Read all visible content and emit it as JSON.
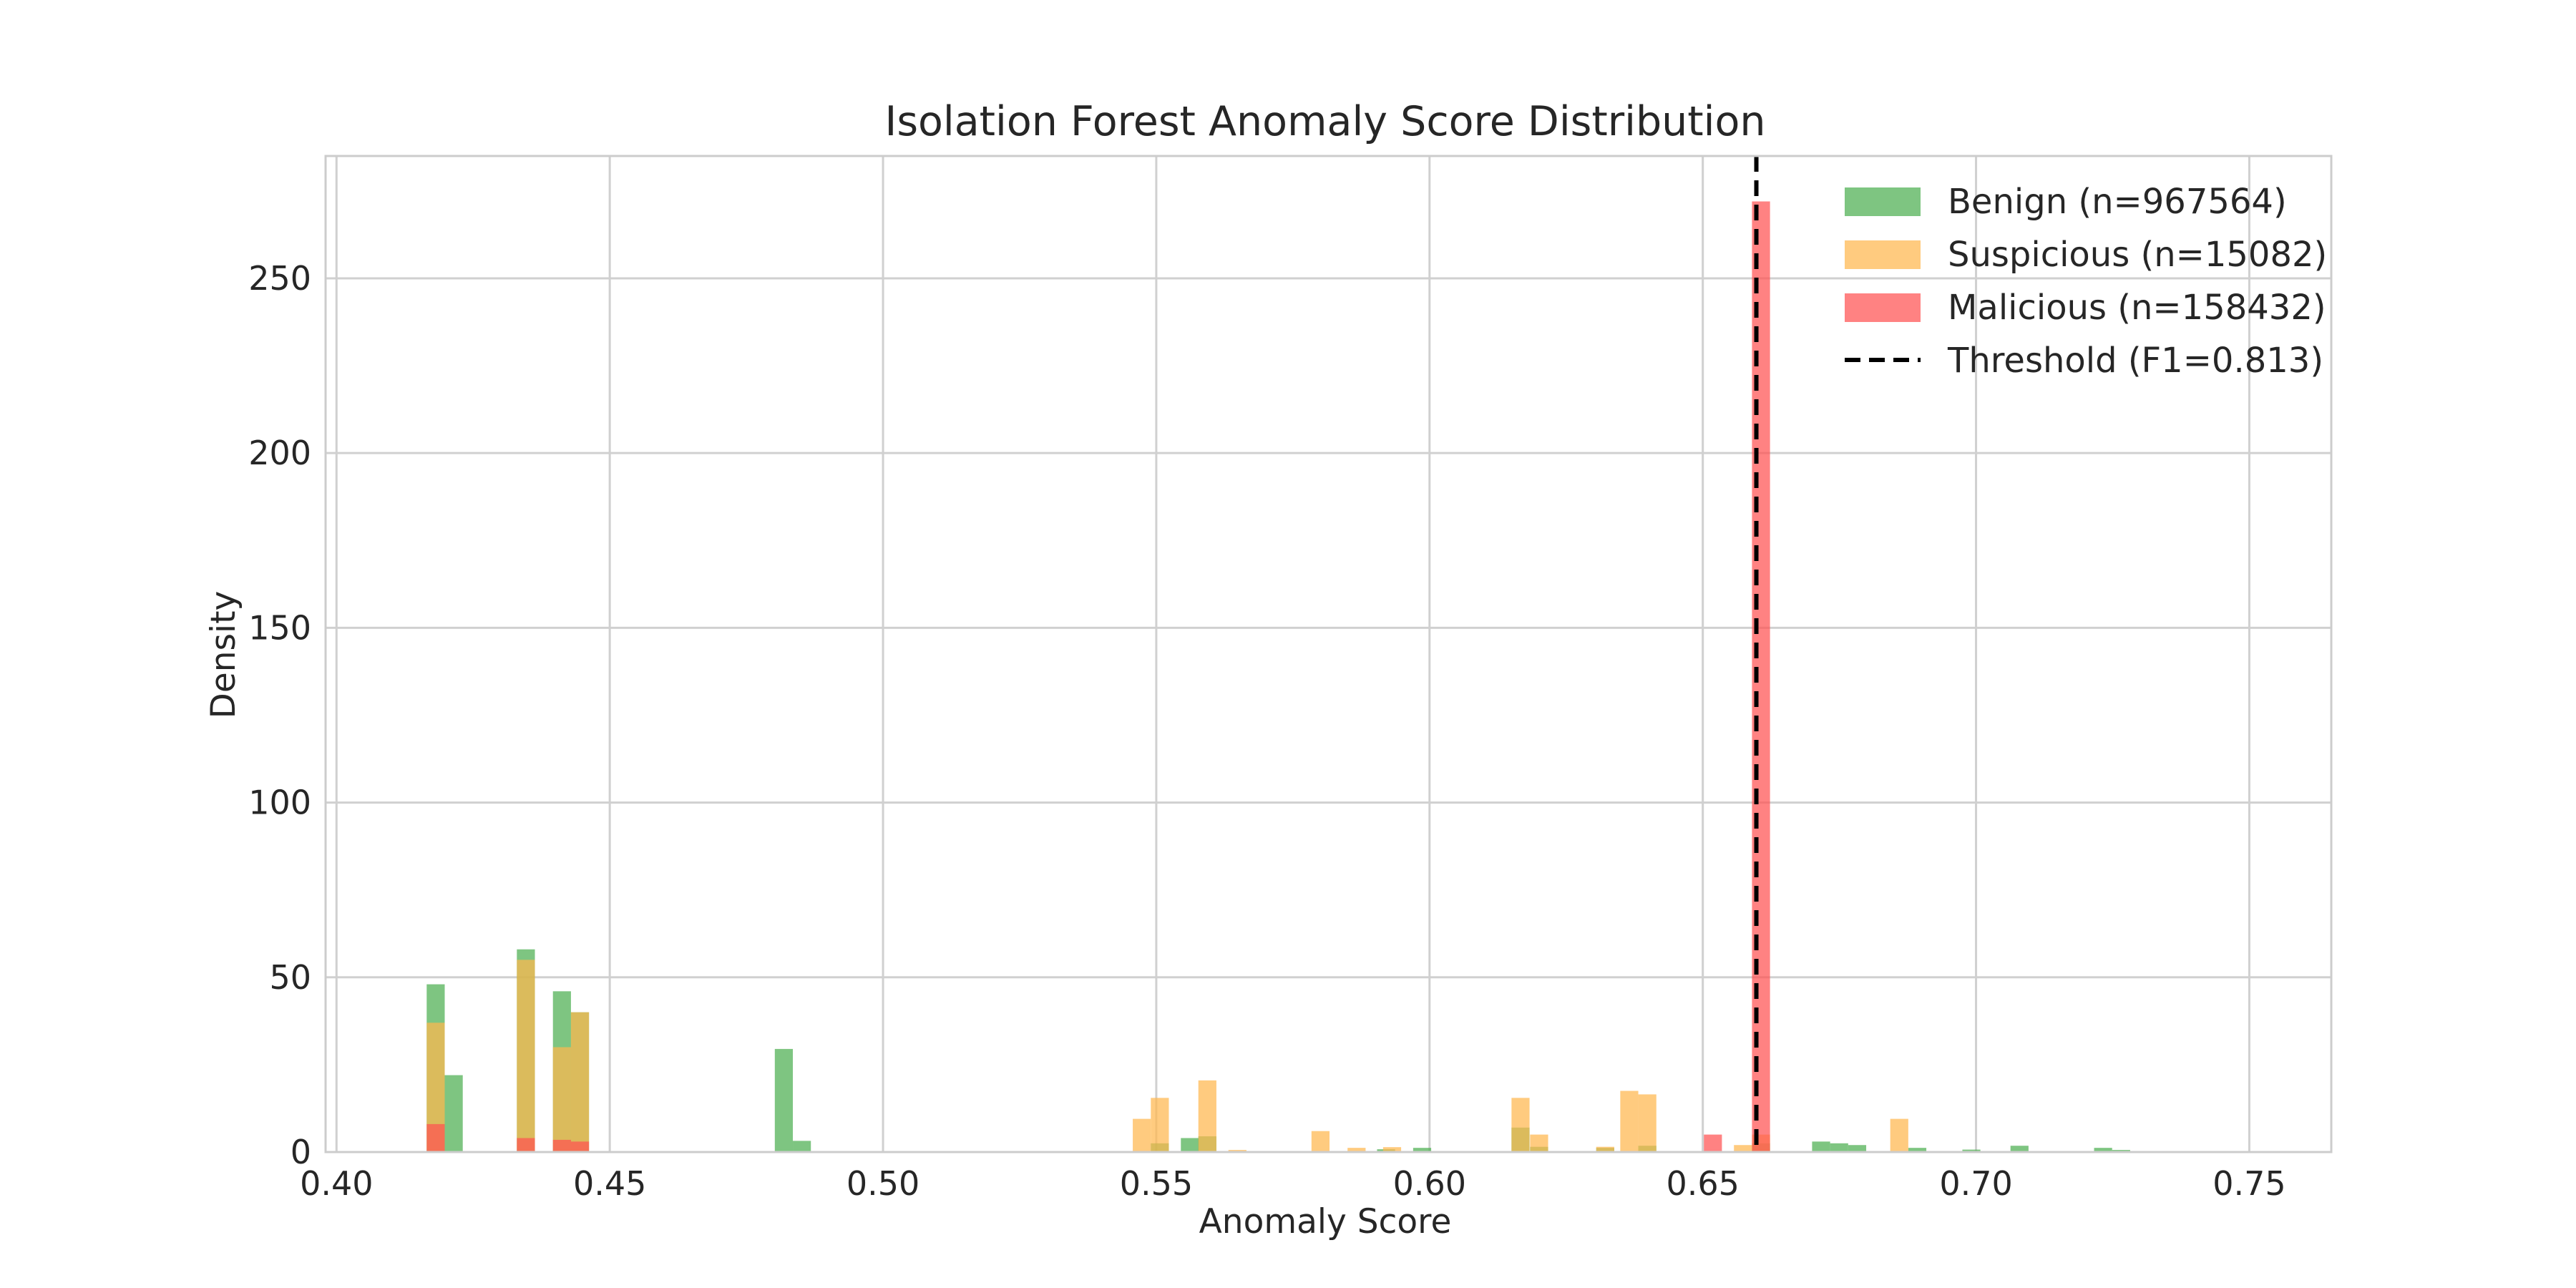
{
  "chart_data": {
    "type": "bar",
    "title": "Isolation Forest Anomaly Score Distribution",
    "xlabel": "Anomaly Score",
    "ylabel": "Density",
    "xlim": [
      0.398,
      0.765
    ],
    "ylim": [
      0,
      285
    ],
    "x_ticks": [
      "0.40",
      "0.45",
      "0.50",
      "0.55",
      "0.60",
      "0.65",
      "0.70",
      "0.75"
    ],
    "x_tick_values": [
      0.4,
      0.45,
      0.5,
      0.55,
      0.6,
      0.65,
      0.7,
      0.75
    ],
    "y_ticks": [
      "0",
      "50",
      "100",
      "150",
      "200",
      "250"
    ],
    "y_tick_values": [
      0,
      50,
      100,
      150,
      200,
      250
    ],
    "grid": true,
    "legend_position": "top-right",
    "bin_width": 0.0033,
    "series": [
      {
        "name": "Benign (n=967564)",
        "color": "#4caf50",
        "bins": [
          [
            0.4165,
            48
          ],
          [
            0.4198,
            22
          ],
          [
            0.433,
            58
          ],
          [
            0.4396,
            46
          ],
          [
            0.4429,
            40
          ],
          [
            0.4802,
            29.5
          ],
          [
            0.4835,
            3.2
          ],
          [
            0.549,
            2.5
          ],
          [
            0.5545,
            4
          ],
          [
            0.5577,
            4.5
          ],
          [
            0.5904,
            0.8
          ],
          [
            0.597,
            1.2
          ],
          [
            0.615,
            7
          ],
          [
            0.6184,
            1.5
          ],
          [
            0.6305,
            1.2
          ],
          [
            0.6382,
            1.8
          ],
          [
            0.659,
            2.5
          ],
          [
            0.67,
            3
          ],
          [
            0.6733,
            2.5
          ],
          [
            0.6766,
            2
          ],
          [
            0.6876,
            1.2
          ],
          [
            0.6975,
            0.7
          ],
          [
            0.7063,
            1.8
          ],
          [
            0.7216,
            1.2
          ],
          [
            0.7249,
            0.6
          ]
        ]
      },
      {
        "name": "Suspicious (n=15082)",
        "color": "#ffb74d",
        "bins": [
          [
            0.4165,
            37
          ],
          [
            0.433,
            55
          ],
          [
            0.4396,
            30
          ],
          [
            0.4429,
            40
          ],
          [
            0.5457,
            9.5
          ],
          [
            0.549,
            15.5
          ],
          [
            0.5577,
            20.5
          ],
          [
            0.5632,
            0.6
          ],
          [
            0.5784,
            6
          ],
          [
            0.585,
            1.2
          ],
          [
            0.5915,
            1.4
          ],
          [
            0.615,
            15.5
          ],
          [
            0.6184,
            5
          ],
          [
            0.6305,
            1.5
          ],
          [
            0.6349,
            17.5
          ],
          [
            0.6382,
            16.5
          ],
          [
            0.6557,
            2
          ],
          [
            0.659,
            5
          ],
          [
            0.6843,
            9.5
          ]
        ]
      },
      {
        "name": "Malicious (n=158432)",
        "color": "#ff5252",
        "bins": [
          [
            0.4165,
            8
          ],
          [
            0.433,
            4
          ],
          [
            0.4396,
            3.5
          ],
          [
            0.4429,
            3
          ],
          [
            0.6502,
            5
          ],
          [
            0.659,
            272
          ]
        ]
      }
    ],
    "threshold": {
      "name": "Threshold (F1=0.813)",
      "x": 0.6598,
      "color": "#000000"
    }
  }
}
